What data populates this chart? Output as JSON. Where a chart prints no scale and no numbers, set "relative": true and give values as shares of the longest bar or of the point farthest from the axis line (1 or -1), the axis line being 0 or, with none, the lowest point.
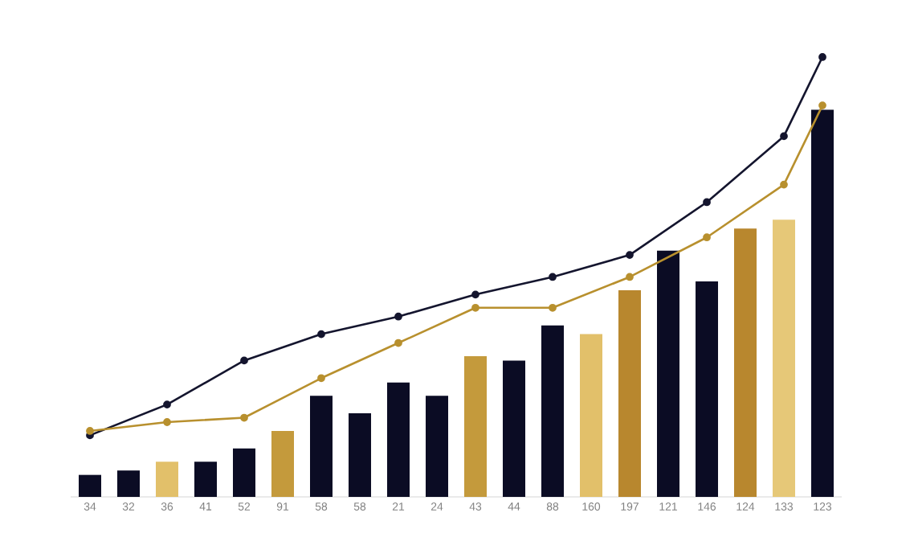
{
  "chart_data": {
    "type": "bar",
    "relative": true,
    "marker": "circle",
    "categories": [
      "34",
      "32",
      "36",
      "41",
      "52",
      "91",
      "58",
      "58",
      "21",
      "24",
      "43",
      "44",
      "88",
      "160",
      "197",
      "121",
      "146",
      "124",
      "133",
      "123"
    ],
    "series": [
      {
        "colors": [
          "#0b0c24",
          "#0b0c24",
          "#e2c06a",
          "#0b0c24",
          "#0b0c24",
          "#c49a3c",
          "#0b0c24",
          "#0b0c24",
          "#0b0c24",
          "#0b0c24",
          "#c49a3c",
          "#0b0c24",
          "#0b0c24",
          "#e2c06a",
          "#b8872e",
          "#0b0c24",
          "#0b0c24",
          "#b8872e",
          "#e6c878",
          "#0b0c24"
        ],
        "values": [
          0.05,
          0.06,
          0.08,
          0.08,
          0.11,
          0.15,
          0.23,
          0.19,
          0.26,
          0.23,
          0.32,
          0.31,
          0.39,
          0.37,
          0.47,
          0.56,
          0.49,
          0.61,
          0.63,
          0.88
        ]
      },
      {
        "type": "line",
        "color": "#14152e",
        "values": [
          0.14,
          null,
          0.21,
          null,
          0.31,
          null,
          0.37,
          null,
          0.41,
          null,
          0.46,
          null,
          0.5,
          null,
          0.55,
          null,
          0.67,
          null,
          0.82,
          1
        ]
      },
      {
        "type": "line",
        "color": "#b8902e",
        "values": [
          0.15,
          null,
          0.17,
          null,
          0.18,
          null,
          0.27,
          null,
          0.35,
          null,
          0.43,
          null,
          0.43,
          null,
          0.5,
          null,
          0.59,
          null,
          0.71,
          0.89
        ]
      }
    ]
  }
}
